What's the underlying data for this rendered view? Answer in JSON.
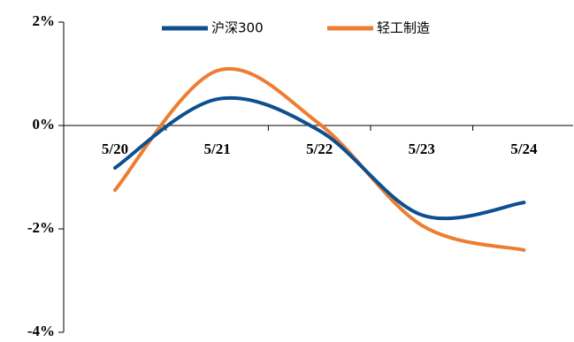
{
  "chart_data": {
    "type": "line",
    "categories": [
      "5/20",
      "5/21",
      "5/22",
      "5/23",
      "5/24"
    ],
    "series": [
      {
        "name": "沪深300",
        "color": "#0e4f8f",
        "values": [
          -0.82,
          0.51,
          -0.1,
          -1.73,
          -1.49
        ]
      },
      {
        "name": "轻工制造",
        "color": "#ed7d31",
        "values": [
          -1.25,
          1.06,
          0.03,
          -1.93,
          -2.41
        ]
      }
    ],
    "ylim": [
      -4,
      2
    ],
    "yticks": [
      {
        "value": -4,
        "label": "-4%"
      },
      {
        "value": -2,
        "label": "-2%"
      },
      {
        "value": 0,
        "label": "0%"
      },
      {
        "value": 2,
        "label": "2%"
      }
    ],
    "legend": "top"
  }
}
